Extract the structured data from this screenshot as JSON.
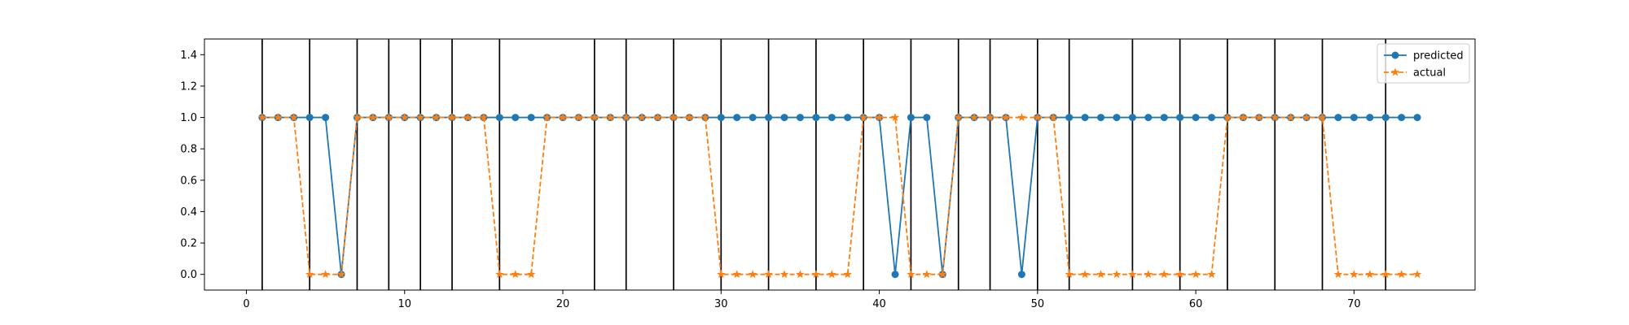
{
  "chart_data": {
    "type": "line",
    "x": [
      1,
      2,
      3,
      4,
      5,
      6,
      7,
      8,
      9,
      10,
      11,
      12,
      13,
      14,
      15,
      16,
      17,
      18,
      19,
      20,
      21,
      22,
      23,
      24,
      25,
      26,
      27,
      28,
      29,
      30,
      31,
      32,
      33,
      34,
      35,
      36,
      37,
      38,
      39,
      40,
      41,
      42,
      43,
      44,
      45,
      46,
      47,
      48,
      49,
      50,
      51,
      52,
      53,
      54,
      55,
      56,
      57,
      58,
      59,
      60,
      61,
      62,
      63,
      64,
      65,
      66,
      67,
      68,
      69,
      70,
      71,
      72,
      73,
      74
    ],
    "series": [
      {
        "name": "predicted",
        "color": "#1f77b4",
        "marker": "circle",
        "linestyle": "solid",
        "values": [
          1,
          1,
          1,
          1,
          1,
          0,
          1,
          1,
          1,
          1,
          1,
          1,
          1,
          1,
          1,
          1,
          1,
          1,
          1,
          1,
          1,
          1,
          1,
          1,
          1,
          1,
          1,
          1,
          1,
          1,
          1,
          1,
          1,
          1,
          1,
          1,
          1,
          1,
          1,
          1,
          0,
          1,
          1,
          0,
          1,
          1,
          1,
          1,
          0,
          1,
          1,
          1,
          1,
          1,
          1,
          1,
          1,
          1,
          1,
          1,
          1,
          1,
          1,
          1,
          1,
          1,
          1,
          1,
          1,
          1,
          1,
          1,
          1,
          1
        ]
      },
      {
        "name": "actual",
        "color": "#ff7f0e",
        "marker": "star",
        "linestyle": "dashed",
        "values": [
          1,
          1,
          1,
          0,
          0,
          0,
          1,
          1,
          1,
          1,
          1,
          1,
          1,
          1,
          1,
          0,
          0,
          0,
          1,
          1,
          1,
          1,
          1,
          1,
          1,
          1,
          1,
          1,
          1,
          0,
          0,
          0,
          0,
          0,
          0,
          0,
          0,
          0,
          1,
          1,
          1,
          0,
          0,
          0,
          1,
          1,
          1,
          1,
          1,
          1,
          1,
          0,
          0,
          0,
          0,
          0,
          0,
          0,
          0,
          0,
          0,
          1,
          1,
          1,
          1,
          1,
          1,
          1,
          0,
          0,
          0,
          0,
          0,
          0
        ]
      }
    ],
    "vlines": [
      1,
      4,
      7,
      9,
      11,
      13,
      16,
      22,
      24,
      27,
      30,
      33,
      36,
      39,
      42,
      45,
      47,
      50,
      52,
      56,
      59,
      62,
      65,
      68,
      72
    ],
    "xlim": [
      -2.65,
      77.65
    ],
    "ylim": [
      -0.1,
      1.5
    ],
    "xticks": [
      0,
      10,
      20,
      30,
      40,
      50,
      60,
      70
    ],
    "yticks": [
      "0.0",
      "0.2",
      "0.4",
      "0.6",
      "0.8",
      "1.0",
      "1.2",
      "1.4"
    ],
    "legend": {
      "placement": "top-right"
    }
  }
}
